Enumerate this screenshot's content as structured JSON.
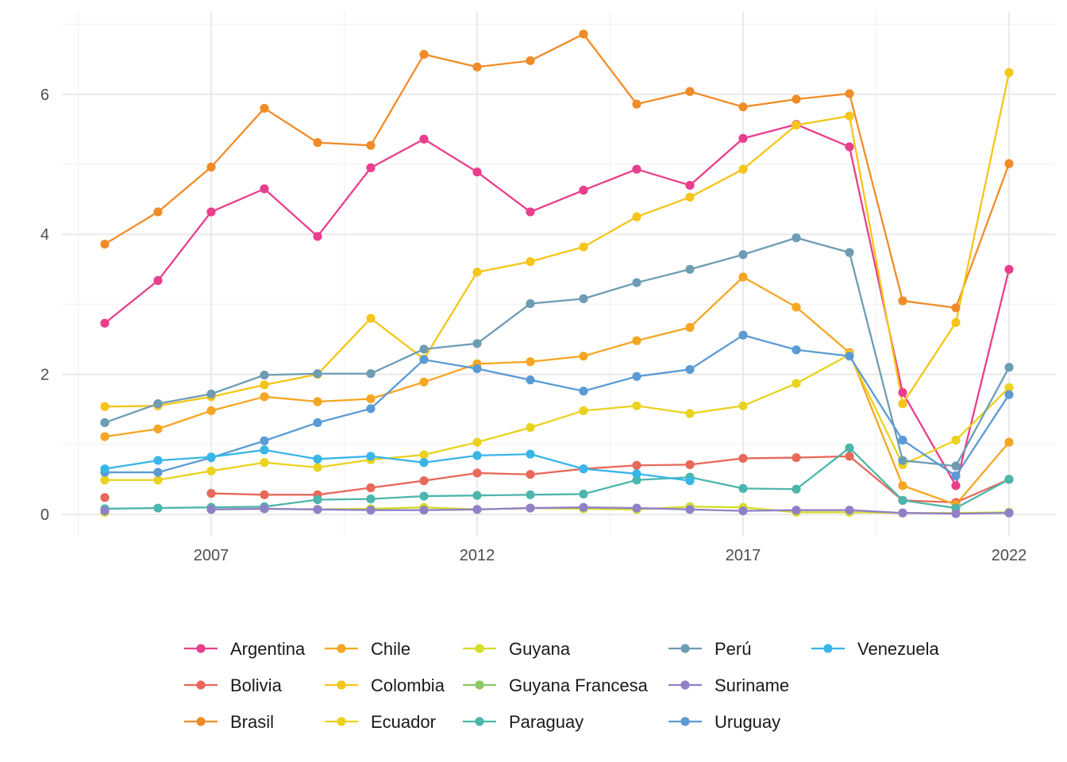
{
  "chart_data": {
    "type": "line",
    "title": "",
    "xlabel": "",
    "ylabel": "",
    "xlim": [
      2004.5,
      2022.7
    ],
    "ylim": [
      -0.3,
      7.0
    ],
    "x_ticks": [
      2007,
      2012,
      2017,
      2022
    ],
    "x_tick_labels": [
      "2007",
      "2012",
      "2017",
      "2022"
    ],
    "y_ticks": [
      0,
      2,
      4,
      6
    ],
    "y_tick_labels": [
      "0",
      "2",
      "4",
      "6"
    ],
    "grid": true,
    "legend_position": "bottom",
    "years": [
      2005,
      2006,
      2007,
      2008,
      2009,
      2010,
      2011,
      2012,
      2013,
      2014,
      2015,
      2016,
      2017,
      2018,
      2019,
      2020,
      2021,
      2022
    ],
    "series": [
      {
        "name": "Argentina",
        "color": "#E83E8C",
        "values": [
          2.73,
          3.34,
          4.32,
          4.65,
          3.97,
          4.95,
          5.36,
          4.89,
          4.32,
          4.63,
          4.93,
          4.7,
          5.37,
          5.57,
          5.25,
          1.74,
          0.41,
          3.5
        ]
      },
      {
        "name": "Bolivia",
        "color": "#E8685A",
        "values": [
          0.24,
          null,
          0.3,
          0.28,
          0.28,
          0.38,
          0.48,
          0.59,
          0.57,
          0.65,
          0.7,
          0.71,
          0.8,
          0.81,
          0.83,
          0.2,
          0.17,
          0.5
        ]
      },
      {
        "name": "Brasil",
        "color": "#F08C28",
        "values": [
          3.86,
          4.32,
          4.96,
          5.8,
          5.31,
          5.27,
          6.57,
          6.39,
          6.48,
          6.86,
          5.86,
          6.04,
          5.82,
          5.93,
          6.01,
          3.05,
          2.95,
          5.01
        ]
      },
      {
        "name": "Chile",
        "color": "#F5A623",
        "values": [
          1.11,
          1.22,
          1.48,
          1.68,
          1.61,
          1.65,
          1.89,
          2.15,
          2.18,
          2.26,
          2.48,
          2.67,
          3.39,
          2.96,
          2.31,
          0.41,
          0.14,
          1.03
        ]
      },
      {
        "name": "Colombia",
        "color": "#F5C518",
        "values": [
          1.54,
          1.55,
          1.68,
          1.85,
          2.0,
          2.8,
          2.22,
          3.46,
          3.61,
          3.82,
          4.25,
          4.53,
          4.93,
          5.56,
          5.69,
          1.58,
          2.74,
          6.31
        ]
      },
      {
        "name": "Ecuador",
        "color": "#EBD21E",
        "values": [
          0.49,
          0.49,
          0.62,
          0.74,
          0.67,
          0.78,
          0.85,
          1.03,
          1.24,
          1.48,
          1.55,
          1.44,
          1.55,
          1.87,
          2.28,
          0.71,
          1.06,
          1.81
        ]
      },
      {
        "name": "Guyana",
        "color": "#D4DC28",
        "values": [
          0.03,
          null,
          0.07,
          0.08,
          0.07,
          0.08,
          0.1,
          0.07,
          0.09,
          0.08,
          0.07,
          0.11,
          0.1,
          0.03,
          0.03,
          0.02,
          0.02,
          0.03
        ]
      },
      {
        "name": "Guyana Francesa",
        "color": "#8CC864",
        "values": [
          null,
          null,
          null,
          null,
          null,
          null,
          null,
          null,
          null,
          null,
          null,
          null,
          null,
          null,
          null,
          null,
          null,
          null
        ]
      },
      {
        "name": "Paraguay",
        "color": "#4DB6AC",
        "values": [
          0.08,
          0.09,
          0.1,
          0.11,
          0.21,
          0.22,
          0.26,
          0.27,
          0.28,
          0.29,
          0.49,
          0.53,
          0.37,
          0.36,
          0.95,
          0.2,
          0.09,
          0.5
        ]
      },
      {
        "name": "Perú",
        "color": "#6E9CB4",
        "values": [
          1.31,
          1.58,
          1.72,
          1.99,
          2.01,
          2.01,
          2.36,
          2.44,
          3.01,
          3.08,
          3.31,
          3.5,
          3.71,
          3.95,
          3.74,
          0.77,
          0.69,
          2.1
        ]
      },
      {
        "name": "Suriname",
        "color": "#9080C8",
        "values": [
          0.05,
          null,
          0.07,
          0.08,
          0.07,
          0.06,
          0.06,
          0.07,
          0.09,
          0.1,
          0.09,
          0.07,
          0.05,
          0.06,
          0.06,
          0.02,
          0.01,
          0.02
        ]
      },
      {
        "name": "Uruguay",
        "color": "#5B9BD5",
        "values": [
          0.6,
          0.6,
          0.81,
          1.05,
          1.31,
          1.51,
          2.21,
          2.08,
          1.92,
          1.76,
          1.97,
          2.07,
          2.56,
          2.35,
          2.26,
          1.06,
          0.55,
          1.71
        ]
      },
      {
        "name": "Venezuela",
        "color": "#38B6E8",
        "values": [
          0.65,
          0.77,
          0.82,
          0.92,
          0.79,
          0.83,
          0.74,
          0.84,
          0.86,
          0.65,
          0.58,
          0.48,
          null,
          null,
          null,
          null,
          null,
          null
        ]
      }
    ]
  }
}
